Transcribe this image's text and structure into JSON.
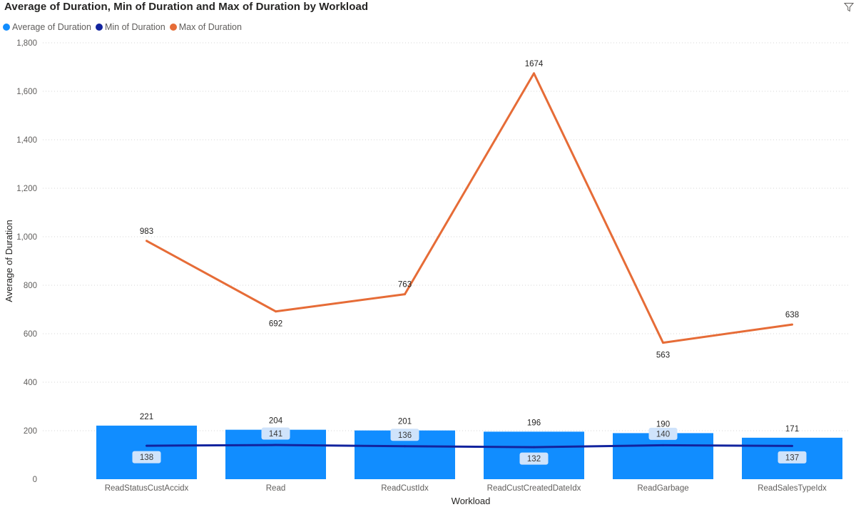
{
  "title": "Average of Duration, Min of Duration and Max of Duration by Workload",
  "toolbar": {
    "filter_icon": "filter-icon"
  },
  "colors": {
    "avg": "#118DFF",
    "min": "#12239E",
    "max": "#E66C37",
    "min_label_bg": "#CFE3FB"
  },
  "chart_data": {
    "type": "bar",
    "title": "Average of Duration, Min of Duration and Max of Duration by Workload",
    "xlabel": "Workload",
    "ylabel": "Average of Duration",
    "ylim": [
      0,
      1800
    ],
    "yticks": [
      "0",
      "200",
      "400",
      "600",
      "800",
      "1,000",
      "1,200",
      "1,400",
      "1,600",
      "1,800"
    ],
    "ytick_values": [
      0,
      200,
      400,
      600,
      800,
      1000,
      1200,
      1400,
      1600,
      1800
    ],
    "grid": true,
    "legend_position": "top-left",
    "categories": [
      "ReadStatusCustAccidx",
      "Read",
      "ReadCustIdx",
      "ReadCustCreatedDateIdx",
      "ReadGarbage",
      "ReadSalesTypeIdx"
    ],
    "series": [
      {
        "name": "Average of  Duration",
        "type": "bar",
        "color": "#118DFF",
        "values": [
          221,
          204,
          201,
          196,
          190,
          171
        ]
      },
      {
        "name": "Min of  Duration",
        "type": "line",
        "color": "#12239E",
        "values": [
          138,
          141,
          136,
          132,
          140,
          137
        ]
      },
      {
        "name": "Max of  Duration",
        "type": "line",
        "color": "#E66C37",
        "values": [
          983,
          692,
          763,
          1674,
          563,
          638
        ]
      }
    ]
  }
}
